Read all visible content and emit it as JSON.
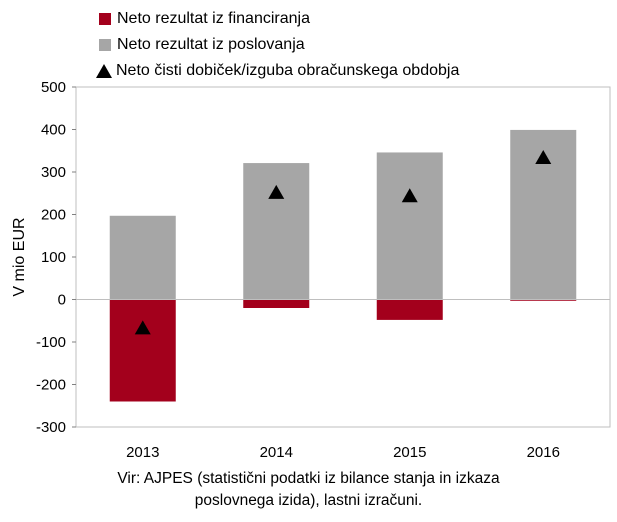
{
  "chart_data": {
    "type": "bar",
    "categories": [
      "2013",
      "2014",
      "2015",
      "2016"
    ],
    "series": [
      {
        "name": "Neto rezultat iz financiranja",
        "values": [
          -240,
          -20,
          -48,
          -3
        ],
        "color": "#a3001c",
        "kind": "bar"
      },
      {
        "name": "Neto rezultat iz poslovanja",
        "values": [
          197,
          321,
          346,
          399
        ],
        "color": "#a6a6a6",
        "kind": "bar"
      },
      {
        "name": "Neto čisti dobiček/izguba obračunskega obdobja",
        "values": [
          -68,
          251,
          243,
          333
        ],
        "color": "#000000",
        "kind": "marker-triangle"
      }
    ],
    "ylabel": "V mio EUR",
    "xlabel": "",
    "ylim": [
      -300,
      500
    ],
    "yticks": [
      -300,
      -200,
      -100,
      0,
      100,
      200,
      300,
      400,
      500
    ],
    "ytick_labels": [
      "-300",
      "-200",
      "-100",
      "0",
      "100",
      "200",
      "300",
      "400",
      "500"
    ],
    "grid": false,
    "legend_position": "top-left"
  },
  "legend": {
    "item1": "Neto rezultat iz financiranja",
    "item2": "Neto rezultat iz poslovanja",
    "item3": "Neto čisti dobiček/izguba obračunskega obdobja"
  },
  "source": {
    "line1": "Vir: AJPES (statistični podatki iz bilance stanja in izkaza",
    "line2": "poslovnega izida), lastni izračuni."
  }
}
